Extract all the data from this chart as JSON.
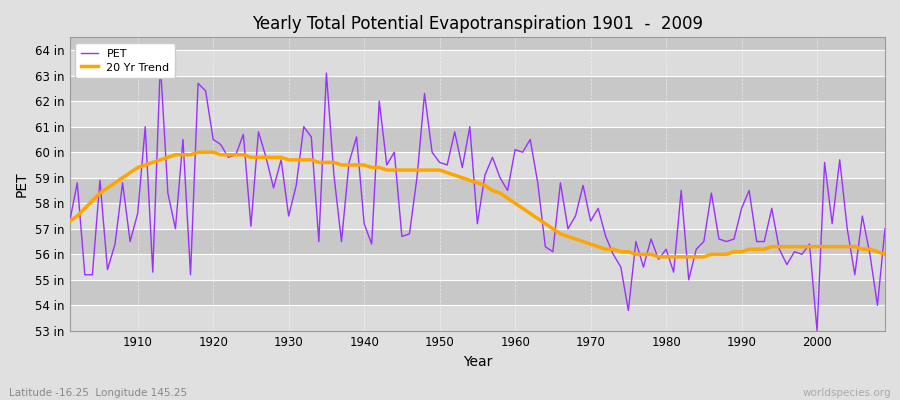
{
  "title": "Yearly Total Potential Evapotranspiration 1901  -  2009",
  "xlabel": "Year",
  "ylabel": "PET",
  "subtitle": "Latitude -16.25  Longitude 145.25",
  "watermark": "worldspecies.org",
  "pet_color": "#9B30FF",
  "trend_color": "#FFA500",
  "fig_bg_color": "#E0E0E0",
  "plot_bg_color": "#D3D3D3",
  "grid_color": "#FFFFFF",
  "ylim": [
    53,
    64.5
  ],
  "xlim": [
    1901,
    2009
  ],
  "yticks": [
    53,
    54,
    55,
    56,
    57,
    58,
    59,
    60,
    61,
    62,
    63,
    64
  ],
  "xticks": [
    1910,
    1920,
    1930,
    1940,
    1950,
    1960,
    1970,
    1980,
    1990,
    2000
  ],
  "years": [
    1901,
    1902,
    1903,
    1904,
    1905,
    1906,
    1907,
    1908,
    1909,
    1910,
    1911,
    1912,
    1913,
    1914,
    1915,
    1916,
    1917,
    1918,
    1919,
    1920,
    1921,
    1922,
    1923,
    1924,
    1925,
    1926,
    1927,
    1928,
    1929,
    1930,
    1931,
    1932,
    1933,
    1934,
    1935,
    1936,
    1937,
    1938,
    1939,
    1940,
    1941,
    1942,
    1943,
    1944,
    1945,
    1946,
    1947,
    1948,
    1949,
    1950,
    1951,
    1952,
    1953,
    1954,
    1955,
    1956,
    1957,
    1958,
    1959,
    1960,
    1961,
    1962,
    1963,
    1964,
    1965,
    1966,
    1967,
    1968,
    1969,
    1970,
    1971,
    1972,
    1973,
    1974,
    1975,
    1976,
    1977,
    1978,
    1979,
    1980,
    1981,
    1982,
    1983,
    1984,
    1985,
    1986,
    1987,
    1988,
    1989,
    1990,
    1991,
    1992,
    1993,
    1994,
    1995,
    1996,
    1997,
    1998,
    1999,
    2000,
    2001,
    2002,
    2003,
    2004,
    2005,
    2006,
    2007,
    2008,
    2009
  ],
  "pet_values": [
    57.3,
    58.8,
    55.2,
    55.2,
    58.9,
    55.4,
    56.4,
    58.8,
    56.5,
    57.6,
    61.0,
    55.3,
    63.5,
    58.4,
    57.0,
    60.5,
    55.2,
    62.7,
    62.4,
    60.5,
    60.3,
    59.8,
    59.9,
    60.7,
    57.1,
    60.8,
    59.8,
    58.6,
    59.7,
    57.5,
    58.7,
    61.0,
    60.6,
    56.5,
    63.1,
    59.1,
    56.5,
    59.6,
    60.6,
    57.2,
    56.4,
    62.0,
    59.5,
    60.0,
    56.7,
    56.8,
    59.0,
    62.3,
    60.0,
    59.6,
    59.5,
    60.8,
    59.4,
    61.0,
    57.2,
    59.1,
    59.8,
    59.0,
    58.5,
    60.1,
    60.0,
    60.5,
    58.8,
    56.3,
    56.1,
    58.8,
    57.0,
    57.5,
    58.7,
    57.3,
    57.8,
    56.7,
    56.0,
    55.5,
    53.8,
    56.5,
    55.5,
    56.6,
    55.8,
    56.2,
    55.3,
    58.5,
    55.0,
    56.2,
    56.5,
    58.4,
    56.6,
    56.5,
    56.6,
    57.8,
    58.5,
    56.5,
    56.5,
    57.8,
    56.2,
    55.6,
    56.1,
    56.0,
    56.4,
    53.0,
    59.6,
    57.2,
    59.7,
    57.0,
    55.2,
    57.5,
    56.0,
    54.0,
    57.0
  ],
  "trend_values": [
    57.3,
    57.5,
    57.8,
    58.1,
    58.4,
    58.6,
    58.8,
    59.0,
    59.2,
    59.4,
    59.5,
    59.6,
    59.7,
    59.8,
    59.9,
    59.9,
    59.9,
    60.0,
    60.0,
    60.0,
    59.9,
    59.9,
    59.9,
    59.9,
    59.8,
    59.8,
    59.8,
    59.8,
    59.8,
    59.7,
    59.7,
    59.7,
    59.7,
    59.6,
    59.6,
    59.6,
    59.5,
    59.5,
    59.5,
    59.5,
    59.4,
    59.4,
    59.3,
    59.3,
    59.3,
    59.3,
    59.3,
    59.3,
    59.3,
    59.3,
    59.2,
    59.1,
    59.0,
    58.9,
    58.8,
    58.7,
    58.5,
    58.4,
    58.2,
    58.0,
    57.8,
    57.6,
    57.4,
    57.2,
    57.0,
    56.8,
    56.7,
    56.6,
    56.5,
    56.4,
    56.3,
    56.2,
    56.2,
    56.1,
    56.1,
    56.0,
    56.0,
    56.0,
    55.9,
    55.9,
    55.9,
    55.9,
    55.9,
    55.9,
    55.9,
    56.0,
    56.0,
    56.0,
    56.1,
    56.1,
    56.2,
    56.2,
    56.2,
    56.3,
    56.3,
    56.3,
    56.3,
    56.3,
    56.3,
    56.3,
    56.3,
    56.3,
    56.3,
    56.3,
    56.3,
    56.2,
    56.2,
    56.1,
    56.0
  ]
}
